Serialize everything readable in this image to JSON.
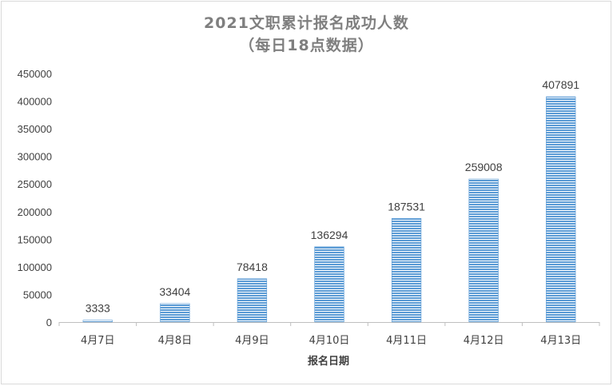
{
  "chart_data": {
    "type": "bar",
    "title": "2021文职累计报名成功人数",
    "subtitle": "（每日18点数据）",
    "categories": [
      "4月7日",
      "4月8日",
      "4月9日",
      "4月10日",
      "4月11日",
      "4月12日",
      "4月13日"
    ],
    "values": [
      3333,
      33404,
      78418,
      136294,
      187531,
      259008,
      407891
    ],
    "data_labels": [
      "3333",
      "33404",
      "78418",
      "136294",
      "187531",
      "259008",
      "407891"
    ],
    "xlabel": "报名日期",
    "ylabel": "",
    "ylim": [
      0,
      450000
    ],
    "yticks": [
      "0",
      "50000",
      "100000",
      "150000",
      "200000",
      "250000",
      "300000",
      "350000",
      "400000",
      "450000"
    ],
    "grid": false,
    "bar_color": "#5b9bd5"
  }
}
